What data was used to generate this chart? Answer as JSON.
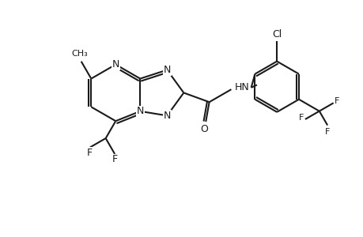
{
  "bg": "#ffffff",
  "lc": "#1a1a1a",
  "lw": 1.5,
  "fs": 9.0,
  "fs_small": 8.0,
  "xlim": [
    0,
    10
  ],
  "ylim": [
    0,
    6.5
  ]
}
